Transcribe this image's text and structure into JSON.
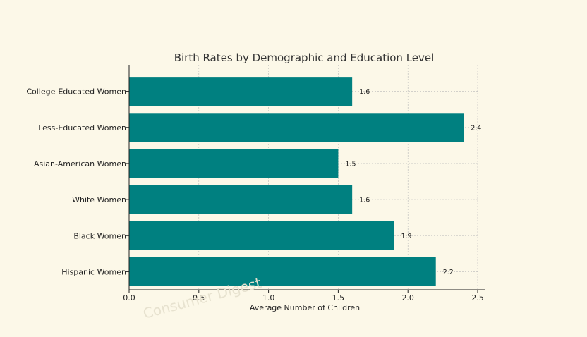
{
  "chart_data": {
    "type": "bar",
    "orientation": "horizontal",
    "title": "Birth Rates by Demographic and Education Level",
    "xlabel": "Average Number of Children",
    "ylabel": "",
    "xlim": [
      0,
      2.5
    ],
    "x_ticks": [
      "0.0",
      "0.5",
      "1.0",
      "1.5",
      "2.0",
      "2.5"
    ],
    "categories": [
      "College-Educated Women",
      "Less-Educated Women",
      "Asian-American Women",
      "White Women",
      "Black Women",
      "Hispanic Women"
    ],
    "values": [
      1.6,
      2.4,
      1.5,
      1.6,
      1.9,
      2.2
    ],
    "data_labels": [
      "1.6",
      "2.4",
      "1.5",
      "1.6",
      "1.9",
      "2.2"
    ],
    "grid": true,
    "bar_color": "#008080",
    "watermark": "Consumer Digest"
  }
}
